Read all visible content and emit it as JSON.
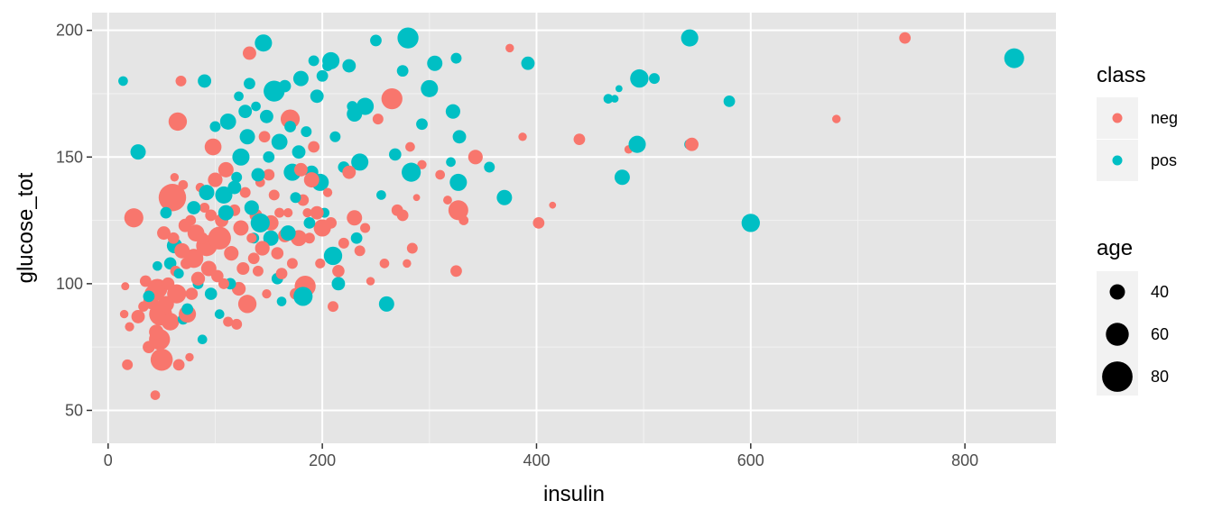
{
  "chart_data": {
    "type": "scatter",
    "title": "",
    "xlabel": "insulin",
    "ylabel": "glucose_tot",
    "xlim": [
      -15,
      885
    ],
    "ylim": [
      37,
      207
    ],
    "x_ticks": [
      0,
      200,
      400,
      600,
      800
    ],
    "y_ticks": [
      50,
      100,
      150,
      200
    ],
    "x_tick_labels": [
      "0",
      "200",
      "400",
      "600",
      "800"
    ],
    "y_tick_labels": [
      "50",
      "100",
      "150",
      "200"
    ],
    "grid": true,
    "panel_background": "#e5e5e5",
    "color_legend": {
      "title": "class",
      "entries": [
        {
          "name": "neg",
          "color": "#f8766d"
        },
        {
          "name": "pos",
          "color": "#00bfc4"
        }
      ]
    },
    "size_legend": {
      "title": "age",
      "entries": [
        {
          "label": "40",
          "value": 40
        },
        {
          "label": "60",
          "value": 60
        },
        {
          "label": "80",
          "value": 80
        }
      ]
    },
    "series": [
      {
        "name": "neg",
        "color": "#f8766d",
        "points": [
          [
            18,
            68,
            28
          ],
          [
            15,
            88,
            22
          ],
          [
            20,
            83,
            24
          ],
          [
            16,
            99,
            21
          ],
          [
            24,
            126,
            50
          ],
          [
            28,
            87,
            35
          ],
          [
            33,
            91,
            27
          ],
          [
            35,
            101,
            30
          ],
          [
            38,
            75,
            32
          ],
          [
            40,
            93,
            40
          ],
          [
            42,
            96,
            45
          ],
          [
            44,
            56,
            25
          ],
          [
            45,
            81,
            38
          ],
          [
            46,
            98,
            52
          ],
          [
            48,
            78,
            55
          ],
          [
            49,
            88,
            60
          ],
          [
            50,
            70,
            58
          ],
          [
            52,
            120,
            35
          ],
          [
            54,
            92,
            42
          ],
          [
            56,
            100,
            33
          ],
          [
            58,
            85,
            46
          ],
          [
            60,
            134,
            72
          ],
          [
            61,
            118,
            30
          ],
          [
            62,
            142,
            22
          ],
          [
            63,
            105,
            28
          ],
          [
            64,
            96,
            50
          ],
          [
            65,
            164,
            48
          ],
          [
            66,
            68,
            30
          ],
          [
            68,
            180,
            28
          ],
          [
            69,
            113,
            40
          ],
          [
            70,
            139,
            25
          ],
          [
            72,
            123,
            35
          ],
          [
            73,
            108,
            30
          ],
          [
            74,
            88,
            45
          ],
          [
            76,
            71,
            22
          ],
          [
            77,
            125,
            28
          ],
          [
            78,
            96,
            32
          ],
          [
            80,
            110,
            50
          ],
          [
            82,
            120,
            44
          ],
          [
            84,
            102,
            36
          ],
          [
            86,
            138,
            24
          ],
          [
            88,
            118,
            30
          ],
          [
            90,
            130,
            26
          ],
          [
            92,
            115,
            55
          ],
          [
            94,
            106,
            40
          ],
          [
            96,
            127,
            30
          ],
          [
            98,
            154,
            44
          ],
          [
            100,
            141,
            38
          ],
          [
            102,
            103,
            32
          ],
          [
            104,
            118,
            60
          ],
          [
            106,
            125,
            35
          ],
          [
            108,
            100,
            28
          ],
          [
            110,
            145,
            40
          ],
          [
            112,
            85,
            26
          ],
          [
            115,
            112,
            38
          ],
          [
            118,
            129,
            30
          ],
          [
            120,
            84,
            28
          ],
          [
            122,
            98,
            36
          ],
          [
            124,
            122,
            40
          ],
          [
            126,
            106,
            33
          ],
          [
            128,
            136,
            28
          ],
          [
            130,
            92,
            48
          ],
          [
            132,
            191,
            35
          ],
          [
            134,
            118,
            26
          ],
          [
            136,
            110,
            30
          ],
          [
            138,
            127,
            33
          ],
          [
            140,
            105,
            28
          ],
          [
            142,
            140,
            25
          ],
          [
            144,
            114,
            38
          ],
          [
            146,
            158,
            30
          ],
          [
            148,
            96,
            24
          ],
          [
            150,
            143,
            30
          ],
          [
            152,
            124,
            40
          ],
          [
            155,
            135,
            28
          ],
          [
            158,
            112,
            32
          ],
          [
            160,
            128,
            26
          ],
          [
            162,
            104,
            30
          ],
          [
            165,
            119,
            35
          ],
          [
            168,
            128,
            24
          ],
          [
            170,
            165,
            50
          ],
          [
            172,
            108,
            28
          ],
          [
            175,
            96,
            30
          ],
          [
            178,
            118,
            42
          ],
          [
            180,
            145,
            35
          ],
          [
            182,
            133,
            30
          ],
          [
            184,
            99,
            55
          ],
          [
            186,
            128,
            24
          ],
          [
            188,
            118,
            28
          ],
          [
            190,
            141,
            40
          ],
          [
            192,
            154,
            30
          ],
          [
            195,
            128,
            35
          ],
          [
            198,
            108,
            26
          ],
          [
            200,
            122,
            45
          ],
          [
            205,
            136,
            24
          ],
          [
            208,
            124,
            30
          ],
          [
            210,
            91,
            28
          ],
          [
            215,
            105,
            32
          ],
          [
            220,
            116,
            28
          ],
          [
            225,
            144,
            35
          ],
          [
            230,
            126,
            40
          ],
          [
            235,
            113,
            28
          ],
          [
            240,
            122,
            26
          ],
          [
            245,
            101,
            22
          ],
          [
            252,
            165,
            28
          ],
          [
            258,
            108,
            25
          ],
          [
            265,
            173,
            55
          ],
          [
            270,
            129,
            30
          ],
          [
            275,
            127,
            30
          ],
          [
            279,
            108,
            22
          ],
          [
            282,
            154,
            25
          ],
          [
            284,
            114,
            28
          ],
          [
            288,
            134,
            18
          ],
          [
            293,
            147,
            24
          ],
          [
            310,
            143,
            25
          ],
          [
            317,
            133,
            23
          ],
          [
            325,
            105,
            30
          ],
          [
            327,
            129,
            52
          ],
          [
            332,
            125,
            25
          ],
          [
            343,
            150,
            38
          ],
          [
            375,
            193,
            22
          ],
          [
            387,
            158,
            22
          ],
          [
            402,
            124,
            30
          ],
          [
            415,
            131,
            18
          ],
          [
            440,
            157,
            30
          ],
          [
            486,
            153,
            22
          ],
          [
            545,
            155,
            35
          ],
          [
            680,
            165,
            22
          ],
          [
            744,
            197,
            30
          ]
        ]
      },
      {
        "name": "pos",
        "color": "#00bfc4",
        "points": [
          [
            14,
            180,
            25
          ],
          [
            28,
            152,
            40
          ],
          [
            38,
            95,
            30
          ],
          [
            46,
            107,
            25
          ],
          [
            54,
            128,
            30
          ],
          [
            58,
            108,
            32
          ],
          [
            62,
            115,
            40
          ],
          [
            66,
            104,
            26
          ],
          [
            70,
            86,
            28
          ],
          [
            74,
            90,
            30
          ],
          [
            80,
            130,
            35
          ],
          [
            84,
            100,
            28
          ],
          [
            88,
            78,
            25
          ],
          [
            90,
            180,
            35
          ],
          [
            92,
            136,
            40
          ],
          [
            96,
            96,
            32
          ],
          [
            100,
            162,
            28
          ],
          [
            104,
            88,
            25
          ],
          [
            108,
            135,
            45
          ],
          [
            110,
            128,
            40
          ],
          [
            112,
            164,
            42
          ],
          [
            114,
            100,
            30
          ],
          [
            118,
            138,
            35
          ],
          [
            120,
            142,
            28
          ],
          [
            122,
            174,
            25
          ],
          [
            124,
            150,
            45
          ],
          [
            128,
            168,
            35
          ],
          [
            130,
            158,
            40
          ],
          [
            132,
            179,
            30
          ],
          [
            134,
            130,
            38
          ],
          [
            136,
            118,
            28
          ],
          [
            138,
            170,
            25
          ],
          [
            140,
            143,
            35
          ],
          [
            142,
            124,
            50
          ],
          [
            145,
            195,
            45
          ],
          [
            148,
            166,
            35
          ],
          [
            150,
            150,
            30
          ],
          [
            152,
            118,
            40
          ],
          [
            155,
            176,
            55
          ],
          [
            158,
            102,
            30
          ],
          [
            160,
            156,
            42
          ],
          [
            162,
            93,
            25
          ],
          [
            165,
            178,
            32
          ],
          [
            168,
            120,
            40
          ],
          [
            170,
            162,
            30
          ],
          [
            172,
            144,
            45
          ],
          [
            175,
            134,
            28
          ],
          [
            178,
            152,
            35
          ],
          [
            180,
            181,
            40
          ],
          [
            182,
            95,
            50
          ],
          [
            185,
            160,
            28
          ],
          [
            188,
            124,
            30
          ],
          [
            190,
            144,
            35
          ],
          [
            192,
            188,
            28
          ],
          [
            195,
            174,
            35
          ],
          [
            198,
            140,
            45
          ],
          [
            200,
            182,
            30
          ],
          [
            202,
            128,
            26
          ],
          [
            205,
            186,
            28
          ],
          [
            208,
            188,
            45
          ],
          [
            210,
            111,
            48
          ],
          [
            212,
            158,
            28
          ],
          [
            215,
            100,
            35
          ],
          [
            220,
            146,
            30
          ],
          [
            225,
            186,
            35
          ],
          [
            228,
            170,
            28
          ],
          [
            230,
            167,
            40
          ],
          [
            232,
            118,
            30
          ],
          [
            235,
            148,
            45
          ],
          [
            240,
            170,
            45
          ],
          [
            250,
            196,
            30
          ],
          [
            255,
            135,
            25
          ],
          [
            260,
            92,
            40
          ],
          [
            268,
            151,
            32
          ],
          [
            275,
            184,
            30
          ],
          [
            280,
            197,
            55
          ],
          [
            283,
            144,
            50
          ],
          [
            293,
            163,
            30
          ],
          [
            300,
            177,
            45
          ],
          [
            305,
            187,
            40
          ],
          [
            320,
            148,
            25
          ],
          [
            322,
            168,
            38
          ],
          [
            325,
            189,
            28
          ],
          [
            327,
            140,
            45
          ],
          [
            328,
            158,
            35
          ],
          [
            356,
            146,
            28
          ],
          [
            370,
            134,
            40
          ],
          [
            392,
            187,
            35
          ],
          [
            467,
            173,
            25
          ],
          [
            473,
            173,
            20
          ],
          [
            477,
            177,
            18
          ],
          [
            480,
            142,
            40
          ],
          [
            494,
            155,
            45
          ],
          [
            496,
            181,
            48
          ],
          [
            510,
            181,
            28
          ],
          [
            543,
            155,
            28
          ],
          [
            543,
            197,
            45
          ],
          [
            580,
            172,
            30
          ],
          [
            600,
            124,
            48
          ],
          [
            846,
            189,
            52
          ]
        ]
      }
    ]
  }
}
